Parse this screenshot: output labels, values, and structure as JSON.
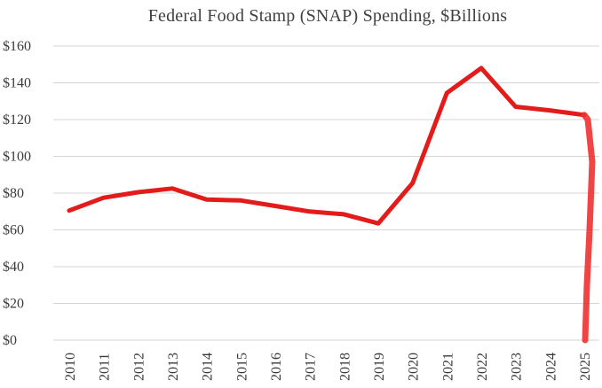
{
  "chart_data": {
    "type": "line",
    "title": "Federal Food Stamp (SNAP) Spending, $Billions",
    "xlabel": "",
    "ylabel": "",
    "ylim": [
      0,
      160
    ],
    "yticks": [
      0,
      20,
      40,
      60,
      80,
      100,
      120,
      140,
      160
    ],
    "ytick_labels": [
      "$0",
      "$20",
      "$40",
      "$60",
      "$80",
      "$100",
      "$120",
      "$140",
      "$160"
    ],
    "categories": [
      "2010",
      "2011",
      "2012",
      "2013",
      "2014",
      "2015",
      "2016",
      "2017",
      "2018",
      "2019",
      "2020",
      "2021",
      "2022",
      "2023",
      "2024",
      "2025"
    ],
    "grid": true,
    "legend": "none",
    "series": [
      {
        "name": "SNAP Spending",
        "color": "#e31b1b",
        "values": [
          70.5,
          77.5,
          80.5,
          82.5,
          76.5,
          76,
          73,
          70,
          68.5,
          63.5,
          85.5,
          134.5,
          148,
          127,
          125,
          122.5
        ]
      }
    ],
    "annotation": {
      "type": "hand-drawn-drop",
      "description_values": [
        122.5,
        120,
        97,
        60,
        30,
        0
      ],
      "color": "#f03030"
    }
  }
}
